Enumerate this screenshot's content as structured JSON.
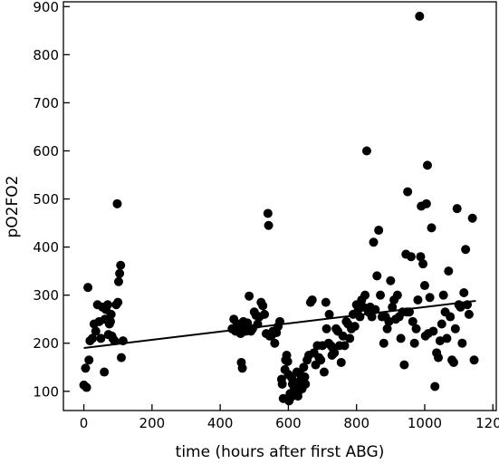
{
  "chart_data": {
    "type": "scatter",
    "title": "",
    "xlabel": "time (hours after first ABG)",
    "ylabel": "pO2FO2",
    "xlim": [
      -60,
      1210
    ],
    "ylim": [
      60,
      910
    ],
    "xticks": [
      0,
      200,
      400,
      600,
      800,
      1000,
      1200
    ],
    "yticks": [
      100,
      200,
      300,
      400,
      500,
      600,
      700,
      800,
      900
    ],
    "grid": false,
    "legend": "none",
    "point_color": "#000000",
    "trend_line": {
      "x": [
        0,
        1150
      ],
      "y": [
        190,
        288
      ]
    },
    "series": [
      {
        "points": [
          [
            0,
            113
          ],
          [
            5,
            148
          ],
          [
            8,
            108
          ],
          [
            12,
            316
          ],
          [
            15,
            165
          ],
          [
            18,
            205
          ],
          [
            25,
            210
          ],
          [
            30,
            240
          ],
          [
            35,
            225
          ],
          [
            40,
            280
          ],
          [
            45,
            245
          ],
          [
            50,
            210
          ],
          [
            55,
            275
          ],
          [
            60,
            140
          ],
          [
            62,
            250
          ],
          [
            65,
            270
          ],
          [
            70,
            280
          ],
          [
            72,
            218
          ],
          [
            75,
            240
          ],
          [
            78,
            245
          ],
          [
            80,
            260
          ],
          [
            82,
            215
          ],
          [
            85,
            210
          ],
          [
            90,
            205
          ],
          [
            95,
            280
          ],
          [
            98,
            490
          ],
          [
            100,
            285
          ],
          [
            102,
            328
          ],
          [
            105,
            345
          ],
          [
            108,
            362
          ],
          [
            110,
            170
          ],
          [
            115,
            205
          ],
          [
            435,
            230
          ],
          [
            440,
            250
          ],
          [
            445,
            225
          ],
          [
            450,
            240
          ],
          [
            455,
            235
          ],
          [
            460,
            220
          ],
          [
            462,
            160
          ],
          [
            465,
            148
          ],
          [
            468,
            245
          ],
          [
            470,
            238
          ],
          [
            475,
            225
          ],
          [
            480,
            242
          ],
          [
            485,
            298
          ],
          [
            488,
            230
          ],
          [
            490,
            225
          ],
          [
            495,
            230
          ],
          [
            500,
            265
          ],
          [
            505,
            258
          ],
          [
            510,
            240
          ],
          [
            515,
            255
          ],
          [
            520,
            285
          ],
          [
            525,
            278
          ],
          [
            530,
            260
          ],
          [
            535,
            220
          ],
          [
            540,
            470
          ],
          [
            542,
            445
          ],
          [
            545,
            215
          ],
          [
            550,
            215
          ],
          [
            555,
            225
          ],
          [
            560,
            200
          ],
          [
            565,
            222
          ],
          [
            570,
            235
          ],
          [
            575,
            245
          ],
          [
            580,
            125
          ],
          [
            582,
            115
          ],
          [
            585,
            85
          ],
          [
            590,
            145
          ],
          [
            592,
            165
          ],
          [
            595,
            175
          ],
          [
            598,
            162
          ],
          [
            600,
            135
          ],
          [
            602,
            80
          ],
          [
            605,
            95
          ],
          [
            608,
            88
          ],
          [
            610,
            128
          ],
          [
            612,
            115
          ],
          [
            615,
            100
          ],
          [
            618,
            105
          ],
          [
            620,
            115
          ],
          [
            625,
            140
          ],
          [
            628,
            90
          ],
          [
            630,
            100
          ],
          [
            632,
            120
          ],
          [
            635,
            135
          ],
          [
            640,
            105
          ],
          [
            645,
            150
          ],
          [
            648,
            130
          ],
          [
            650,
            115
          ],
          [
            655,
            165
          ],
          [
            660,
            175
          ],
          [
            665,
            285
          ],
          [
            670,
            290
          ],
          [
            675,
            180
          ],
          [
            680,
            155
          ],
          [
            685,
            195
          ],
          [
            690,
            170
          ],
          [
            695,
            165
          ],
          [
            700,
            195
          ],
          [
            705,
            140
          ],
          [
            710,
            285
          ],
          [
            712,
            230
          ],
          [
            718,
            200
          ],
          [
            720,
            260
          ],
          [
            725,
            195
          ],
          [
            728,
            175
          ],
          [
            730,
            190
          ],
          [
            735,
            180
          ],
          [
            740,
            230
          ],
          [
            745,
            225
          ],
          [
            750,
            195
          ],
          [
            755,
            160
          ],
          [
            760,
            215
          ],
          [
            765,
            195
          ],
          [
            770,
            245
          ],
          [
            775,
            240
          ],
          [
            780,
            210
          ],
          [
            785,
            230
          ],
          [
            790,
            260
          ],
          [
            795,
            235
          ],
          [
            800,
            280
          ],
          [
            805,
            270
          ],
          [
            810,
            255
          ],
          [
            815,
            290
          ],
          [
            820,
            275
          ],
          [
            825,
            300
          ],
          [
            830,
            600
          ],
          [
            835,
            265
          ],
          [
            840,
            275
          ],
          [
            845,
            255
          ],
          [
            850,
            410
          ],
          [
            855,
            270
          ],
          [
            860,
            340
          ],
          [
            865,
            435
          ],
          [
            870,
            300
          ],
          [
            875,
            255
          ],
          [
            880,
            200
          ],
          [
            885,
            255
          ],
          [
            890,
            230
          ],
          [
            895,
            245
          ],
          [
            900,
            330
          ],
          [
            905,
            275
          ],
          [
            910,
            290
          ],
          [
            915,
            250
          ],
          [
            920,
            300
          ],
          [
            925,
            255
          ],
          [
            930,
            210
          ],
          [
            935,
            265
          ],
          [
            940,
            155
          ],
          [
            945,
            385
          ],
          [
            948,
            265
          ],
          [
            950,
            515
          ],
          [
            955,
            265
          ],
          [
            960,
            380
          ],
          [
            965,
            245
          ],
          [
            970,
            200
          ],
          [
            975,
            230
          ],
          [
            980,
            290
          ],
          [
            985,
            880
          ],
          [
            988,
            380
          ],
          [
            990,
            485
          ],
          [
            995,
            365
          ],
          [
            1000,
            320
          ],
          [
            1002,
            215
          ],
          [
            1005,
            490
          ],
          [
            1008,
            570
          ],
          [
            1010,
            220
          ],
          [
            1015,
            295
          ],
          [
            1020,
            440
          ],
          [
            1025,
            225
          ],
          [
            1030,
            110
          ],
          [
            1035,
            180
          ],
          [
            1040,
            170
          ],
          [
            1045,
            205
          ],
          [
            1050,
            240
          ],
          [
            1055,
            300
          ],
          [
            1060,
            265
          ],
          [
            1065,
            210
          ],
          [
            1070,
            350
          ],
          [
            1075,
            255
          ],
          [
            1080,
            165
          ],
          [
            1085,
            160
          ],
          [
            1090,
            230
          ],
          [
            1095,
            480
          ],
          [
            1100,
            280
          ],
          [
            1105,
            275
          ],
          [
            1110,
            200
          ],
          [
            1115,
            305
          ],
          [
            1120,
            395
          ],
          [
            1125,
            280
          ],
          [
            1130,
            260
          ],
          [
            1140,
            460
          ],
          [
            1145,
            165
          ]
        ]
      }
    ]
  }
}
